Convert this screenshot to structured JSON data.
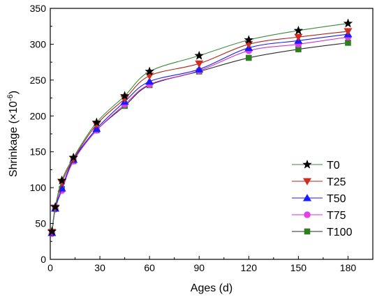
{
  "chart_data": {
    "type": "line",
    "xlabel": "Ages (d)",
    "ylabel": "Shrinkage (×10",
    "ylabel_superscript": "-6",
    "ylabel_suffix": ")",
    "xlim": [
      0,
      195
    ],
    "ylim": [
      0,
      350
    ],
    "x_ticks": [
      0,
      30,
      60,
      90,
      120,
      150,
      180
    ],
    "y_ticks": [
      0,
      50,
      100,
      150,
      200,
      250,
      300,
      350
    ],
    "x_tick_labels": [
      "0",
      "30",
      "60",
      "90",
      "120",
      "150",
      "180"
    ],
    "y_tick_labels": [
      "0",
      "50",
      "100",
      "150",
      "200",
      "250",
      "300",
      "350"
    ],
    "x": [
      1,
      3,
      7,
      14,
      28,
      45,
      60,
      90,
      120,
      150,
      180
    ],
    "grid": false,
    "legend_position": "lower-right",
    "series": [
      {
        "name": "T0",
        "marker": "star",
        "color": "#000000",
        "line_color": "#3a8a3a",
        "values": [
          39,
          73,
          110,
          142,
          191,
          228,
          262,
          284,
          306,
          319,
          329
        ]
      },
      {
        "name": "T25",
        "marker": "triangle-down",
        "color": "#d12d1f",
        "line_color": "#b02418",
        "values": [
          38,
          72,
          107,
          140,
          188,
          224,
          256,
          273,
          300,
          310,
          318
        ]
      },
      {
        "name": "T50",
        "marker": "triangle-up",
        "color": "#1a1aff",
        "line_color": "#1a1aff",
        "values": [
          37,
          71,
          99,
          139,
          182,
          220,
          248,
          265,
          295,
          305,
          314
        ]
      },
      {
        "name": "T75",
        "marker": "circle",
        "color": "#e040e8",
        "line_color": "#d030d8",
        "values": [
          36,
          70,
          96,
          137,
          180,
          216,
          244,
          263,
          291,
          300,
          310
        ]
      },
      {
        "name": "T100",
        "marker": "square",
        "color": "#2e7d1e",
        "line_color": "#2a2a2a",
        "values": [
          37,
          71,
          98,
          137,
          180,
          214,
          243,
          262,
          281,
          293,
          302
        ]
      }
    ]
  }
}
